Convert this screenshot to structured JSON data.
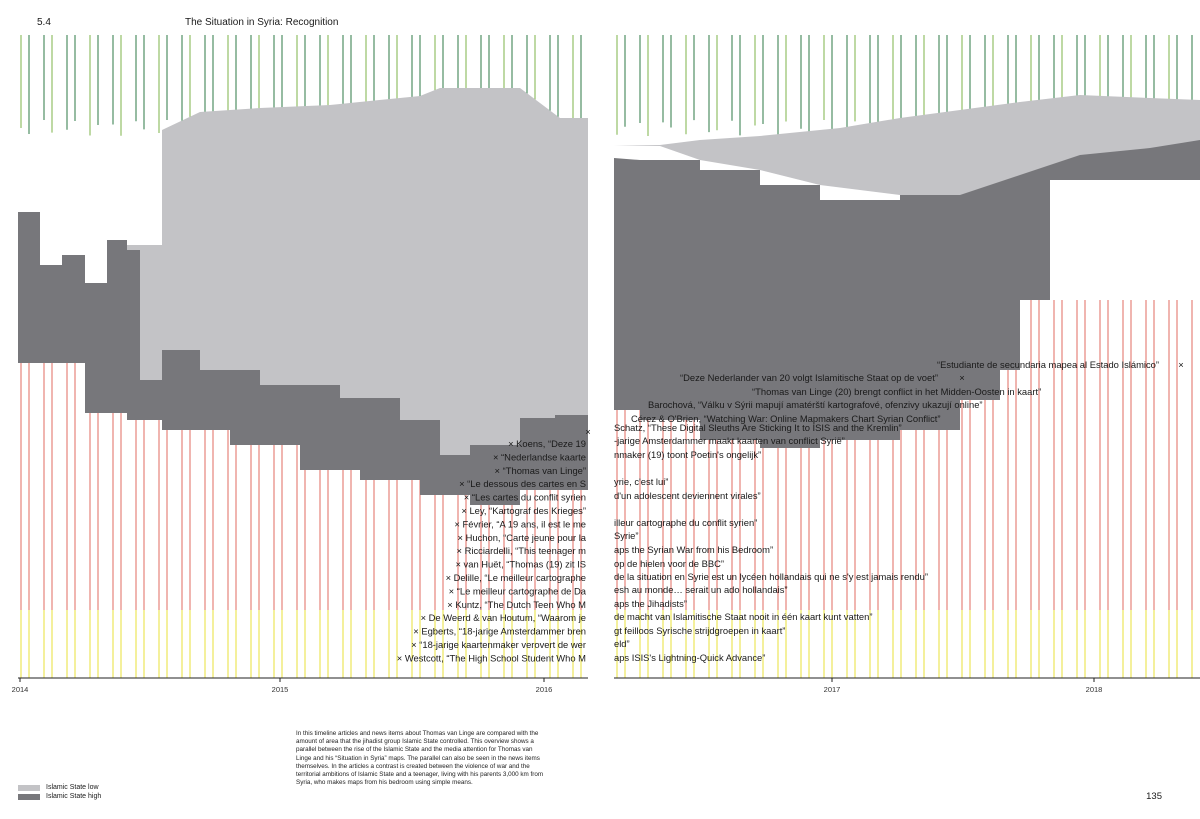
{
  "header": {
    "section": "5.4",
    "title": "The Situation in Syria: Recognition"
  },
  "colors": {
    "is_low": "#c3c3c6",
    "is_high": "#77777b",
    "line_top_a": "#2d7a45",
    "line_top_b": "#7db34a",
    "line_mid": "#d9463a",
    "line_bottom": "#e8e23a",
    "axis": "#222222"
  },
  "chart_data": {
    "type": "area",
    "x_axis_labels": [
      "2014",
      "2015",
      "2016",
      "2017",
      "2018"
    ],
    "series": [
      {
        "name": "Islamic State low",
        "relative_level_top": [
          0,
          0.35,
          0.75,
          0.9,
          0.96,
          1,
          0.98,
          0.97,
          0.95,
          0.92,
          0.95,
          0.99,
          1.02,
          1.06,
          1.1,
          1.12
        ]
      },
      {
        "name": "Islamic State high",
        "relative_level_top": [
          0.58,
          0.56,
          0.5,
          0.5,
          0.48,
          0.46,
          0.44,
          0.42,
          0.4,
          0.4,
          0.45,
          0.55,
          0.72,
          0.86,
          0.92,
          0.98
        ]
      }
    ]
  },
  "annotations_left": [
    "Koens, “Deze 19",
    "“Nederlandse kaarte",
    "“Thomas van Linge”",
    "“Le dessous des cartes en S",
    "“Les cartes du conflit syrien",
    "Ley, “Kartograf des Krieges”",
    "Février, “A 19 ans, il est le me",
    "Huchon, “Carte jeune pour la",
    "Ricciardelli, “This teenager m",
    "van Huët, “Thomas (19) zit IS",
    "Delille, “Le meilleur cartographe",
    "“Le meilleur cartographe de Da",
    "Kuntz, “The Dutch Teen Who M",
    "De Weerd & van Houtum, “Waarom je",
    "Egberts, “18-jarige Amsterdammer bren",
    "“18-jarige kaartenmaker verovert de wer",
    "Westcott, “The High School Student Who M"
  ],
  "annotations_right": [
    "Schatz, “These Digital Sleuths Are Sticking It to ISIS and the Kremlin”",
    "-jarige Amsterdammer maakt kaarten van conflict Syrië”",
    "nmaker (19) toont Poetin's ongelijk”",
    "yrie, c'est lui”",
    "d'un adolescent deviennent virales”",
    "illeur cartographe du conflit syrien”",
    "Syrie”",
    "aps the Syrian War from his Bedroom”",
    "op de hielen voor de BBC”",
    "de la situation en Syrie est un lycéen hollandais qui ne s'y est jamais rendu”",
    "esh au monde… serait un ado hollandais”",
    "aps the Jihadists”",
    "de macht van Islamitische Staat nooit in één kaart kunt vatten”",
    "gt feilloos Syrische strijdgroepen in kaart”",
    "eld”",
    "aps ISIS's Lightning-Quick Advance”"
  ],
  "annotations_upper": [
    "“Estudiante de secundaria mapea al Estado Islámico”",
    "“Deze Nederlander van 20 volgt Islamitische Staat op de voet”",
    "“Thomas van Linge (20) brengt conflict in het Midden-Oosten in kaart”",
    "Barochová, “Válku v Sýrii mapují amatérští kartografové, ofenzivy ukazují online”",
    "Cérez & O'Brien, “Watching War: Online Mapmakers Chart Syrian Conflict”"
  ],
  "marker": "×",
  "legend": {
    "low": "Islamic State low",
    "high": "Islamic State high"
  },
  "caption": "In this timeline articles and news items about Thomas van Linge are compared with the amount of area that the jihadist group Islamic State controlled. This overview shows a parallel between the rise of the Islamic State and the media attention for Thomas van Linge and his “Situation in Syria” maps. The parallel can also be seen in the news items themselves. In the articles a contrast is created between the violence of war and the territorial ambitions of Islamic State and a teenager, living with his parents 3,000 km from Syria, who makes maps from his bedroom using simple means.",
  "page_number": "135"
}
